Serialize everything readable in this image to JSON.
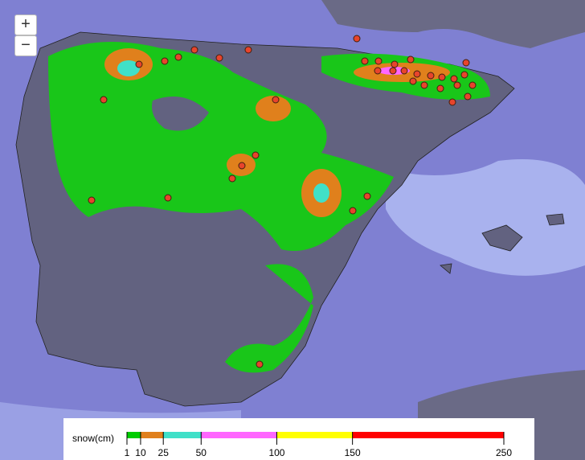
{
  "controls": {
    "zoom_in": "+",
    "zoom_out": "−"
  },
  "legend": {
    "title": "snow(cm)",
    "ticks": [
      1,
      10,
      25,
      50,
      100,
      150,
      250
    ],
    "colors": [
      "#00cc00",
      "#e0801c",
      "#40e0c8",
      "#ff66ff",
      "#ffff00",
      "#ff0000"
    ]
  }
}
